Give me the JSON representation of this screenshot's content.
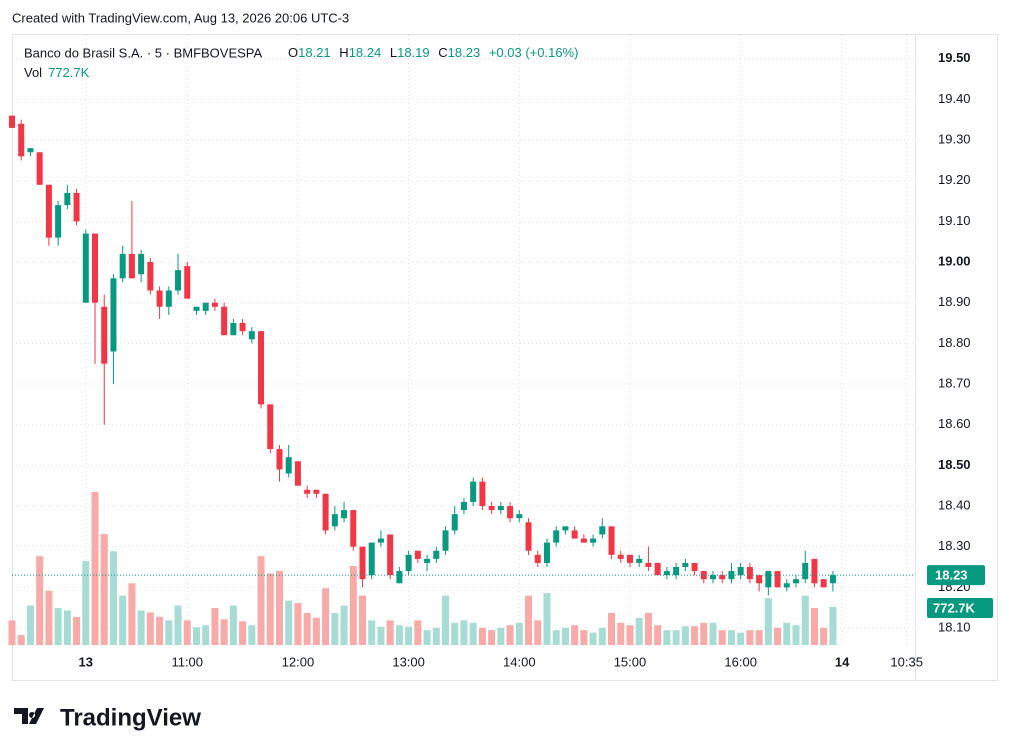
{
  "header": {
    "credit": "Created with TradingView.com, Aug 13, 2026 20:06 UTC-3"
  },
  "legend": {
    "symbol": "Banco do Brasil S.A. · 5 · BMFBOVESPA",
    "o": "O",
    "h": "H",
    "l": "L",
    "c": "C",
    "change": "+0.03 (+0.16%)",
    "vol": "Vol"
  },
  "footer": {
    "logo": "TradingView"
  },
  "chart_data": {
    "type": "candlestick",
    "open": [
      19.36,
      19.34,
      19.27,
      19.27,
      19.19,
      19.06,
      19.14,
      19.17,
      18.9,
      19.07,
      18.89,
      18.78,
      18.96,
      19.02,
      18.97,
      19.0,
      18.93,
      18.89,
      18.93,
      18.99,
      18.88,
      18.88,
      18.9,
      18.89,
      18.82,
      18.85,
      18.81,
      18.83,
      18.65,
      18.54,
      18.48,
      18.51,
      18.44,
      18.44,
      18.43,
      18.35,
      18.37,
      18.39,
      18.3,
      18.23,
      18.31,
      18.33,
      18.21,
      18.24,
      18.29,
      18.26,
      18.27,
      18.29,
      18.34,
      18.39,
      18.41,
      18.46,
      18.4,
      18.39,
      18.4,
      18.37,
      18.36,
      18.28,
      18.26,
      18.31,
      18.34,
      18.34,
      18.32,
      18.31,
      18.33,
      18.35,
      18.28,
      18.28,
      18.26,
      18.26,
      18.26,
      18.23,
      18.23,
      18.25,
      18.26,
      18.24,
      18.22,
      18.23,
      18.22,
      18.23,
      18.25,
      18.23,
      18.2,
      18.24,
      18.2,
      18.21,
      18.22,
      18.27,
      18.22,
      18.21
    ],
    "high": [
      19.36,
      19.35,
      19.28,
      19.27,
      19.19,
      19.15,
      19.19,
      19.18,
      19.08,
      19.07,
      18.92,
      18.97,
      19.04,
      19.15,
      19.03,
      19.01,
      18.94,
      18.94,
      19.02,
      19.0,
      18.89,
      18.9,
      18.91,
      18.9,
      18.86,
      18.86,
      18.84,
      18.83,
      18.65,
      18.55,
      18.55,
      18.51,
      18.45,
      18.44,
      18.43,
      18.4,
      18.41,
      18.39,
      18.3,
      18.31,
      18.34,
      18.33,
      18.25,
      18.29,
      18.29,
      18.28,
      18.3,
      18.35,
      18.4,
      18.42,
      18.47,
      18.47,
      18.41,
      18.41,
      18.41,
      18.39,
      18.37,
      18.29,
      18.32,
      18.35,
      18.35,
      18.35,
      18.33,
      18.33,
      18.37,
      18.35,
      18.29,
      18.28,
      18.28,
      18.3,
      18.26,
      18.25,
      18.26,
      18.27,
      18.26,
      18.24,
      18.24,
      18.24,
      18.26,
      18.26,
      18.26,
      18.23,
      18.24,
      18.24,
      18.22,
      18.23,
      18.29,
      18.27,
      18.22,
      18.24
    ],
    "low": [
      19.33,
      19.25,
      19.26,
      19.19,
      19.04,
      19.04,
      19.13,
      19.09,
      18.9,
      18.75,
      18.6,
      18.7,
      18.95,
      18.96,
      18.95,
      18.92,
      18.86,
      18.87,
      18.92,
      18.91,
      18.87,
      18.87,
      18.88,
      18.82,
      18.82,
      18.82,
      18.8,
      18.64,
      18.53,
      18.46,
      18.47,
      18.45,
      18.42,
      18.42,
      18.33,
      18.34,
      18.36,
      18.29,
      18.2,
      18.22,
      18.3,
      18.22,
      18.21,
      18.23,
      18.26,
      18.24,
      18.26,
      18.28,
      18.33,
      18.38,
      18.4,
      18.39,
      18.38,
      18.38,
      18.36,
      18.36,
      18.28,
      18.25,
      18.25,
      18.3,
      18.33,
      18.32,
      18.31,
      18.3,
      18.32,
      18.27,
      18.26,
      18.25,
      18.25,
      18.24,
      18.23,
      18.22,
      18.22,
      18.24,
      18.23,
      18.21,
      18.21,
      18.21,
      18.21,
      18.22,
      18.21,
      18.19,
      18.18,
      18.2,
      18.19,
      18.2,
      18.21,
      18.2,
      18.2,
      18.19
    ],
    "close": [
      19.33,
      19.26,
      19.28,
      19.19,
      19.06,
      19.14,
      19.17,
      19.1,
      19.07,
      18.9,
      18.75,
      18.96,
      19.02,
      18.96,
      19.02,
      18.93,
      18.89,
      18.93,
      18.98,
      18.91,
      18.89,
      18.9,
      18.89,
      18.82,
      18.85,
      18.83,
      18.83,
      18.65,
      18.54,
      18.49,
      18.52,
      18.45,
      18.43,
      18.43,
      18.34,
      18.38,
      18.39,
      18.3,
      18.22,
      18.31,
      18.32,
      18.23,
      18.24,
      18.28,
      18.27,
      18.27,
      18.29,
      18.34,
      18.38,
      18.41,
      18.46,
      18.4,
      18.39,
      18.4,
      18.37,
      18.38,
      18.29,
      18.26,
      18.31,
      18.34,
      18.35,
      18.32,
      18.31,
      18.32,
      18.35,
      18.28,
      18.27,
      18.26,
      18.27,
      18.25,
      18.23,
      18.24,
      18.25,
      18.26,
      18.24,
      18.22,
      18.23,
      18.22,
      18.24,
      18.25,
      18.22,
      18.21,
      18.24,
      18.2,
      18.21,
      18.22,
      18.26,
      18.21,
      18.2,
      18.23
    ],
    "volume": [
      500,
      200,
      800,
      1800,
      1100,
      750,
      700,
      570,
      1700,
      3100,
      2250,
      1900,
      1000,
      1250,
      700,
      660,
      570,
      500,
      800,
      500,
      360,
      400,
      750,
      520,
      800,
      480,
      400,
      1800,
      1450,
      1500,
      900,
      850,
      650,
      550,
      1150,
      650,
      800,
      1600,
      1000,
      500,
      370,
      500,
      400,
      370,
      500,
      300,
      350,
      1000,
      450,
      500,
      450,
      350,
      300,
      350,
      400,
      450,
      1000,
      500,
      1050,
      300,
      350,
      400,
      300,
      250,
      350,
      650,
      450,
      400,
      550,
      650,
      400,
      300,
      300,
      380,
      380,
      450,
      450,
      300,
      300,
      250,
      300,
      300,
      950,
      350,
      450,
      400,
      1000,
      750,
      350,
      772.7
    ],
    "last_volume_label": "772.7K",
    "up_color": "#089981",
    "down_color": "#f23645",
    "up_volume_color": "#a6dcd4",
    "down_volume_color": "#f7aaa8",
    "ylim": [
      18.05,
      19.56
    ],
    "yticks": [
      {
        "value": 18.1,
        "label": "18.10"
      },
      {
        "value": 18.2,
        "label": "18.20"
      },
      {
        "value": 18.3,
        "label": "18.30"
      },
      {
        "value": 18.4,
        "label": "18.40"
      },
      {
        "value": 18.5,
        "label": "18.50"
      },
      {
        "value": 18.6,
        "label": "18.60"
      },
      {
        "value": 18.7,
        "label": "18.70"
      },
      {
        "value": 18.8,
        "label": "18.80"
      },
      {
        "value": 18.9,
        "label": "18.90"
      },
      {
        "value": 19.0,
        "label": "19.00"
      },
      {
        "value": 19.1,
        "label": "19.10"
      },
      {
        "value": 19.2,
        "label": "19.20"
      },
      {
        "value": 19.3,
        "label": "19.30"
      },
      {
        "value": 19.4,
        "label": "19.40"
      },
      {
        "value": 19.5,
        "label": "19.50"
      }
    ],
    "xlim": [
      0,
      97.9
    ],
    "xticks": [
      {
        "value": 8,
        "label": "13"
      },
      {
        "value": 19,
        "label": "11:00"
      },
      {
        "value": 31,
        "label": "12:00"
      },
      {
        "value": 43,
        "label": "13:00"
      },
      {
        "value": 55,
        "label": "14:00"
      },
      {
        "value": 67,
        "label": "15:00"
      },
      {
        "value": 79,
        "label": "16:00"
      },
      {
        "value": 90,
        "label": "14"
      },
      {
        "value": 97,
        "label": "10:35"
      }
    ],
    "grid": true
  }
}
